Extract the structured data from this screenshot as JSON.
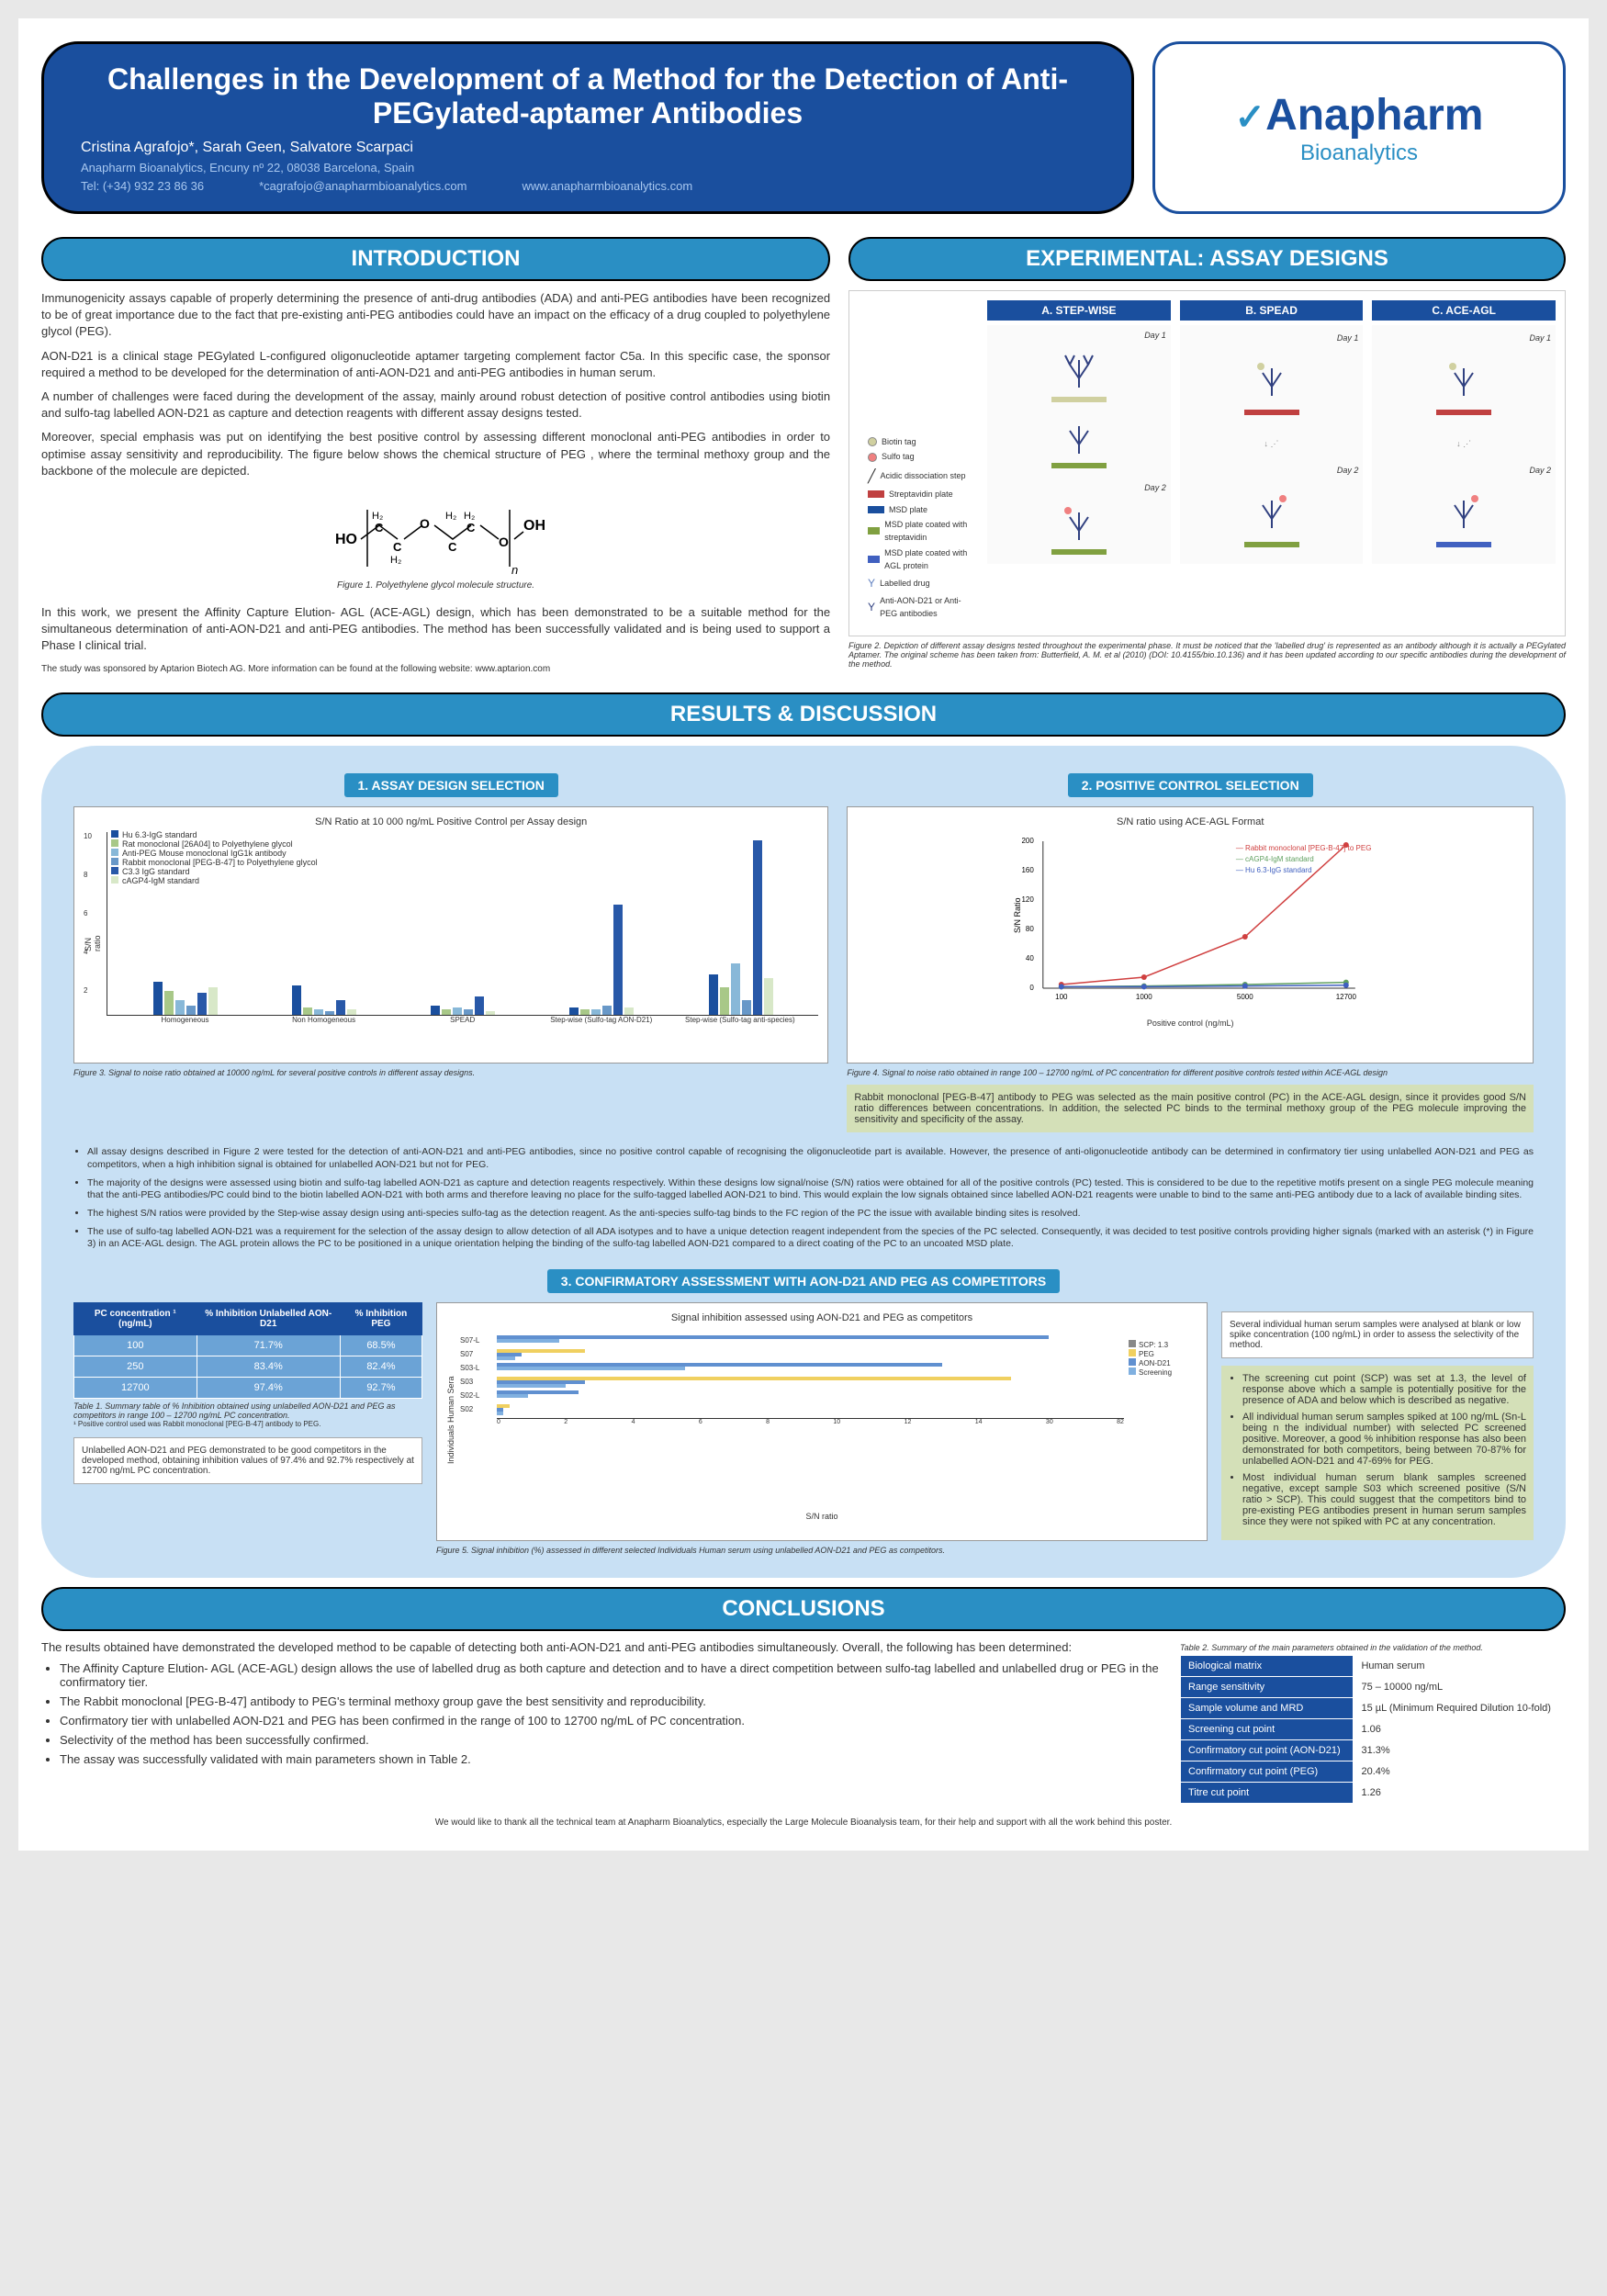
{
  "header": {
    "title": "Challenges in the Development of a Method for the Detection of Anti-PEGylated-aptamer Antibodies",
    "authors": "Cristina Agrafojo*, Sarah Geen, Salvatore Scarpaci",
    "affiliation": "Anapharm Bioanalytics, Encuny nº 22, 08038 Barcelona, Spain",
    "tel": "Tel: (+34) 932 23 86 36",
    "email": "*cagrafojo@anapharmbioanalytics.com",
    "web": "www.anapharmbioanalytics.com",
    "logo_main": "Anapharm",
    "logo_sub": "Bioanalytics"
  },
  "sections": {
    "intro": "INTRODUCTION",
    "exp": "EXPERIMENTAL: ASSAY DESIGNS",
    "results": "RESULTS & DISCUSSION",
    "concl": "CONCLUSIONS"
  },
  "intro": {
    "p1": "Immunogenicity assays capable of properly determining the presence of anti-drug antibodies (ADA) and anti-PEG antibodies have been recognized to be of great importance due to the fact that pre-existing anti-PEG antibodies could have an impact on the efficacy of a drug coupled to polyethylene glycol (PEG).",
    "p2": "AON-D21 is a clinical stage PEGylated L-configured oligonucleotide aptamer targeting complement factor C5a. In this specific case, the sponsor required a method to be developed for the determination of anti-AON-D21 and anti-PEG antibodies in human serum.",
    "p3": "A number of challenges were faced during the development of the assay, mainly around robust detection of positive control antibodies using biotin and sulfo-tag labelled AON-D21 as capture and detection reagents with different assay designs tested.",
    "p4": "Moreover, special emphasis was put on identifying the best positive control by assessing different monoclonal anti-PEG antibodies in order to optimise assay sensitivity and reproducibility. The figure below shows the chemical structure of PEG , where the terminal methoxy group and the backbone of the molecule are depicted.",
    "fig1_caption": "Figure 1. Polyethylene glycol molecule structure.",
    "p5": "In this work, we present the Affinity Capture Elution- AGL (ACE-AGL) design, which has been demonstrated to be a suitable method for the simultaneous determination of anti-AON-D21 and anti-PEG antibodies. The method has been successfully validated and is being used to support a Phase I clinical trial.",
    "footnote": "The study was sponsored by Aptarion Biotech AG. More information can be found at the following website: www.aptarion.com"
  },
  "assay": {
    "a": "A. STEP-WISE",
    "b": "B. SPEAD",
    "c": "C. ACE-AGL",
    "day1": "Day 1",
    "day2": "Day 2",
    "legend": {
      "biotin": "Biotin tag",
      "sulfo": "Sulfo tag",
      "acid": "Acidic dissociation step",
      "strep": "Streptavidin plate",
      "msd": "MSD plate",
      "msd_strep": "MSD plate coated with streptavidin",
      "msd_agl": "MSD plate coated with AGL protein",
      "labelled": "Labelled drug",
      "anti": "Anti-AON-D21 or Anti-PEG antibodies"
    },
    "fig2_caption": "Figure 2. Depiction of different assay designs tested throughout the experimental phase. It must be noticed that the 'labelled drug' is represented as an antibody although it is actually a PEGylated Aptamer. The original scheme has been taken from: Butterfield, A. M. et al (2010) (DOI: 10.4155/bio.10.136) and it has been updated according to our specific antibodies during the development of the method."
  },
  "results": {
    "sub1": "1. ASSAY DESIGN SELECTION",
    "sub2": "2. POSITIVE CONTROL SELECTION",
    "sub3": "3. CONFIRMATORY ASSESSMENT WITH AON-D21 AND PEG AS COMPETITORS",
    "chart1": {
      "title": "S/N Ratio at 10 000 ng/mL Positive Control per Assay design",
      "ylabel": "S/N ratio",
      "ymax": 10,
      "categories": [
        "Homogeneous",
        "Non Homogeneous",
        "SPEAD",
        "Step-wise (Sulfo-tag AON-D21)",
        "Step-wise (Sulfo-tag anti-species)"
      ],
      "legend": [
        "Hu 6.3-IgG standard",
        "Rat monoclonal [26A04] to Polyethylene glycol",
        "Anti-PEG Mouse monoclonal IgG1k antibody",
        "Rabbit monoclonal [PEG-B-47] to Polyethylene glycol",
        "C3.3 IgG standard",
        "cAGP4-IgM standard"
      ],
      "colors": [
        "#1a4f9e",
        "#a8c888",
        "#88b8d8",
        "#6898c8",
        "#2858a8",
        "#d8e8c8"
      ],
      "data": [
        [
          1.8,
          1.3,
          0.8,
          0.5,
          1.2,
          1.5
        ],
        [
          1.6,
          0.4,
          0.3,
          0.2,
          0.8,
          0.3
        ],
        [
          0.5,
          0.3,
          0.4,
          0.3,
          1.0,
          0.2
        ],
        [
          0.4,
          0.3,
          0.3,
          0.5,
          6.0,
          0.4
        ],
        [
          2.2,
          1.5,
          2.8,
          0.8,
          9.5,
          2.0
        ]
      ],
      "caption": "Figure 3. Signal to noise ratio obtained at 10000 ng/mL for several positive controls in different assay designs."
    },
    "chart2": {
      "title": "S/N ratio using ACE-AGL Format",
      "ylabel": "S/N Ratio",
      "xlabel": "Positive control (ng/mL)",
      "ymax": 200,
      "xticks": [
        100,
        1000,
        5000,
        12700
      ],
      "legend": [
        "Rabbit monoclonal [PEG-B-47] to PEG",
        "cAGP4-IgM standard",
        "Hu 6.3-IgG standard"
      ],
      "colors": [
        "#d04040",
        "#60a060",
        "#4060c0"
      ],
      "series": [
        [
          5,
          15,
          70,
          195
        ],
        [
          2,
          3,
          5,
          8
        ],
        [
          2,
          2,
          3,
          4
        ]
      ],
      "caption": "Figure 4. Signal to noise ratio obtained in range 100 – 12700 ng/mL of PC concentration for different positive controls tested within ACE-AGL design"
    },
    "highlight1": "Rabbit monoclonal [PEG-B-47] antibody to PEG was selected as the main positive control (PC) in the ACE-AGL design, since it provides good S/N ratio differences between concentrations. In addition, the selected PC binds to the terminal methoxy group of the PEG molecule improving the sensitivity and specificity of the assay.",
    "bullets": [
      "All assay designs described in Figure 2 were tested for the detection of anti-AON-D21 and anti-PEG antibodies, since no positive control capable of recognising the oligonucleotide part is available. However, the presence of anti-oligonucleotide antibody can be determined in confirmatory tier using unlabelled AON-D21 and PEG as competitors, when a high inhibition signal is obtained for unlabelled AON-D21 but not for PEG.",
      "The majority of the designs were assessed using biotin and sulfo-tag labelled AON-D21 as capture and detection reagents respectively. Within these designs low signal/noise (S/N) ratios were obtained for all of the positive controls (PC) tested. This is considered to be due to the repetitive motifs present on a single PEG molecule meaning that the anti-PEG antibodies/PC could bind to the biotin labelled AON-D21 with both arms and therefore leaving no place for the sulfo-tagged labelled AON-D21 to bind. This would explain the low signals obtained since labelled AON-D21 reagents were unable to bind to the same anti-PEG antibody due to a lack of available binding sites.",
      "The highest S/N ratios were provided by the Step-wise assay design using anti-species sulfo-tag as the detection reagent. As the anti-species sulfo-tag binds to the FC region of the PC the issue with available binding sites is resolved.",
      "The use of sulfo-tag labelled AON-D21 was a requirement for the selection of the assay design to allow detection of all ADA isotypes and to have a unique detection reagent independent from the species of the PC selected. Consequently, it was decided to test positive controls providing higher signals (marked with an asterisk (*) in Figure 3) in an ACE-AGL design. The AGL protein allows the PC to be positioned in a unique orientation helping the binding of the sulfo-tag labelled AON-D21 compared to a direct coating of the PC to an uncoated MSD plate."
    ],
    "table1": {
      "headers": [
        "PC concentration ¹ (ng/mL)",
        "% Inhibition Unlabelled AON-D21",
        "% Inhibition PEG"
      ],
      "rows": [
        [
          "100",
          "71.7%",
          "68.5%"
        ],
        [
          "250",
          "83.4%",
          "82.4%"
        ],
        [
          "12700",
          "97.4%",
          "92.7%"
        ]
      ],
      "caption": "Table 1. Summary table of % Inhibition obtained using unlabelled AON-D21 and PEG as competitors in range 100 – 12700 ng/mL PC concentration.",
      "footnote": "¹ Positive control used was Rabbit monoclonal [PEG-B-47] antibody to PEG."
    },
    "note1": "Unlabelled AON-D21 and PEG demonstrated to be good competitors in the developed method, obtaining inhibition values of 97.4% and 92.7% respectively at 12700 ng/mL PC concentration.",
    "chart3": {
      "title": "Signal inhibition assessed using AON-D21 and PEG as competitors",
      "ylabel": "Individuals Human Sera",
      "xlabel": "S/N ratio",
      "samples": [
        "S07-L",
        "S07",
        "S03-L",
        "S03",
        "S02-L",
        "S02"
      ],
      "legend": [
        "SCP: 1.3",
        "PEG",
        "AON-D21",
        "Screening"
      ],
      "colors": [
        "#888",
        "#f0d060",
        "#6090d0",
        "#80b0e0"
      ],
      "caption": "Figure 5. Signal inhibition (%) assessed in different selected Individuals Human serum using unlabelled AON-D21 and PEG as competitors."
    },
    "side_note": "Several individual human serum samples were analysed at blank or low spike concentration (100 ng/mL) in order to assess the selectivity of the method.",
    "highlight2": [
      "The screening cut point (SCP) was set at 1.3, the level of response above which a sample is potentially positive for the presence of ADA and below which is described as negative.",
      "All individual human serum samples spiked at 100 ng/mL (Sn-L being n the individual number) with selected PC screened positive. Moreover, a good % inhibition response has also been demonstrated for both competitors, being between 70-87% for unlabelled AON-D21 and 47-69% for PEG.",
      "Most individual human serum blank samples screened negative, except sample S03 which screened positive (S/N ratio > SCP). This could suggest that the competitors bind to pre-existing PEG antibodies present in human serum samples since they were not spiked with PC at any concentration."
    ]
  },
  "conclusions": {
    "intro": "The results obtained have demonstrated the developed method to be capable of detecting both anti-AON-D21 and anti-PEG antibodies simultaneously. Overall, the following has been determined:",
    "bullets": [
      "The Affinity Capture Elution- AGL (ACE-AGL) design allows the use of labelled drug as both capture and detection and to have a direct competition between sulfo-tag labelled and unlabelled drug or PEG in the confirmatory tier.",
      "The Rabbit monoclonal [PEG-B-47] antibody to PEG's terminal methoxy group gave the best sensitivity and reproducibility.",
      "Confirmatory tier with unlabelled AON-D21 and PEG has been confirmed in the range of 100 to 12700 ng/mL of PC concentration.",
      "Selectivity of the method has been successfully confirmed.",
      "The assay was successfully validated with main parameters shown in Table 2."
    ],
    "table2": {
      "caption": "Table 2. Summary of the main parameters obtained in the validation of the method.",
      "rows": [
        [
          "Biological matrix",
          "Human serum"
        ],
        [
          "Range sensitivity",
          "75 – 10000 ng/mL"
        ],
        [
          "Sample volume and MRD",
          "15 µL (Minimum Required Dilution 10-fold)"
        ],
        [
          "Screening cut point",
          "1.06"
        ],
        [
          "Confirmatory cut point (AON-D21)",
          "31.3%"
        ],
        [
          "Confirmatory cut point (PEG)",
          "20.4%"
        ],
        [
          "Titre cut point",
          "1.26"
        ]
      ]
    }
  },
  "ack": "We would like to thank all the technical team at Anapharm Bioanalytics, especially the Large Molecule Bioanalysis team, for their help and support with all the work behind this poster."
}
